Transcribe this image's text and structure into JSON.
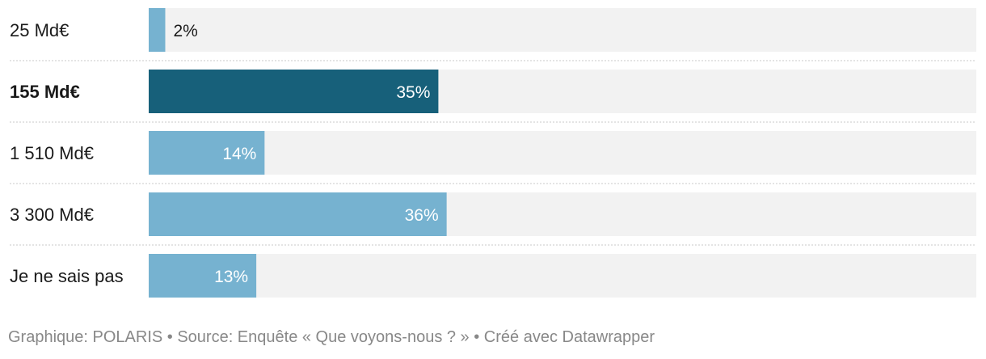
{
  "chart_data": {
    "type": "bar",
    "orientation": "horizontal",
    "categories": [
      "25 Md€",
      "155 Md€",
      "1 510 Md€",
      "3 300 Md€",
      "Je ne sais pas"
    ],
    "values": [
      2,
      35,
      14,
      36,
      13
    ],
    "value_labels": [
      "2%",
      "35%",
      "14%",
      "36%",
      "13%"
    ],
    "highlighted_category": "155 Md€",
    "xlim": [
      0,
      100
    ],
    "grid": false,
    "title": "",
    "xlabel": "",
    "ylabel": ""
  },
  "colors": {
    "bar": "#76b2d0",
    "bar_highlight": "#17607a",
    "track": "#f2f2f2",
    "separator": "#c8c8c8",
    "label_inside": "#ffffff",
    "label_outside": "#1a1a1a"
  },
  "footer": {
    "text": "Graphique: POLARIS • Source: Enquête « Que voyons-nous ? » • Créé avec Datawrapper"
  }
}
